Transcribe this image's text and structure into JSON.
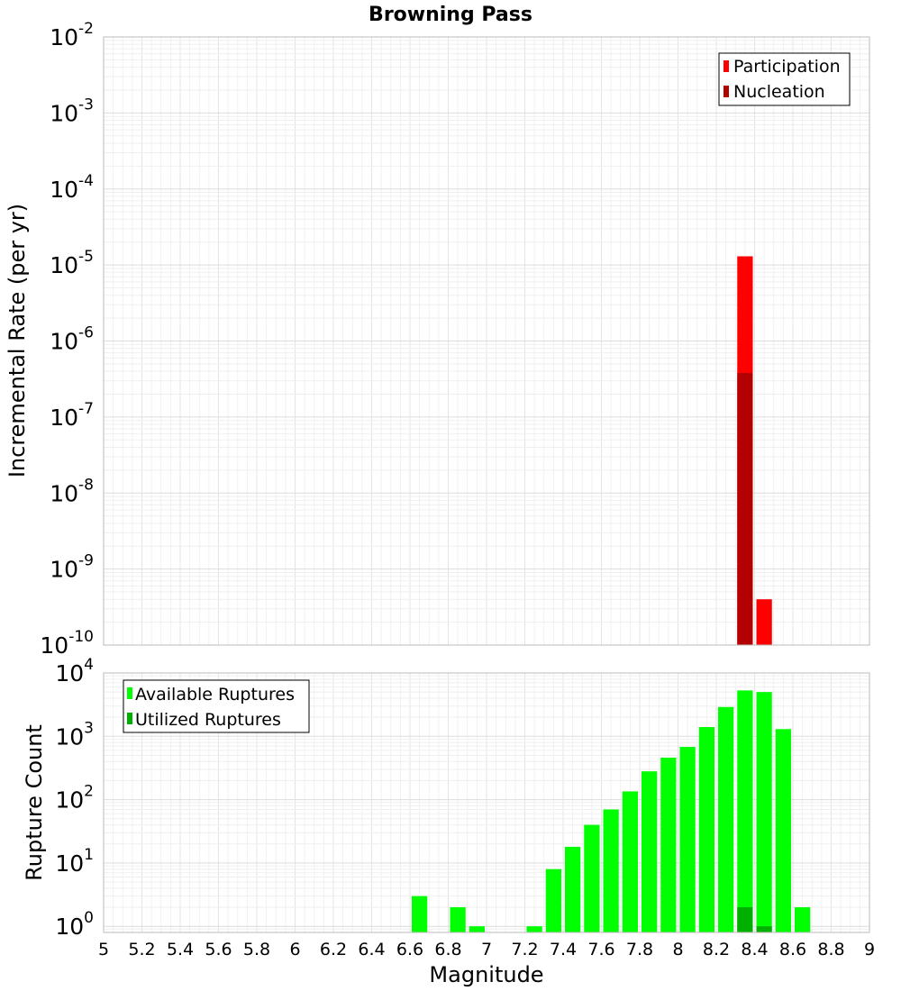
{
  "chart_data": [
    {
      "type": "bar",
      "panel": "top",
      "title": "Browning Pass",
      "xlabel": "",
      "ylabel": "Incremental Rate (per yr)",
      "y_scale": "log",
      "ylim": [
        1e-10,
        0.01
      ],
      "xlim": [
        5,
        9
      ],
      "bin_width": 0.1,
      "grid": true,
      "legend_position": "top-right",
      "y_tick_exponents": [
        -10,
        -9,
        -8,
        -7,
        -6,
        -5,
        -4,
        -3,
        -2
      ],
      "series": [
        {
          "name": "Participation",
          "color": "#ff0000",
          "x": [
            8.35,
            8.45
          ],
          "values": [
            1.3e-05,
            4e-10
          ]
        },
        {
          "name": "Nucleation",
          "color": "#b30000",
          "x": [
            8.35
          ],
          "values": [
            3.8e-07
          ]
        }
      ]
    },
    {
      "type": "bar",
      "panel": "bottom",
      "xlabel": "Magnitude",
      "ylabel": "Rupture Count",
      "y_scale": "log",
      "ylim": [
        0.8,
        10000
      ],
      "xlim": [
        5,
        9
      ],
      "bin_width": 0.1,
      "grid": true,
      "legend_position": "top-left",
      "y_tick_exponents": [
        0,
        1,
        2,
        3,
        4
      ],
      "x_ticks": [
        "5",
        "5.2",
        "5.4",
        "5.6",
        "5.8",
        "6",
        "6.2",
        "6.4",
        "6.6",
        "6.8",
        "7",
        "7.2",
        "7.4",
        "7.6",
        "7.8",
        "8",
        "8.2",
        "8.4",
        "8.6",
        "8.8",
        "9"
      ],
      "series": [
        {
          "name": "Available Ruptures",
          "color": "#00ff00",
          "x": [
            6.65,
            6.85,
            6.95,
            7.25,
            7.35,
            7.45,
            7.55,
            7.65,
            7.75,
            7.85,
            7.95,
            8.05,
            8.15,
            8.25,
            8.35,
            8.45,
            8.55,
            8.65
          ],
          "values": [
            3,
            2,
            1,
            1,
            8,
            18,
            40,
            70,
            135,
            280,
            460,
            680,
            1400,
            2900,
            5300,
            5000,
            1300,
            2
          ]
        },
        {
          "name": "Utilized Ruptures",
          "color": "#00b000",
          "x": [
            8.35,
            8.45
          ],
          "values": [
            2,
            1
          ]
        }
      ]
    }
  ]
}
